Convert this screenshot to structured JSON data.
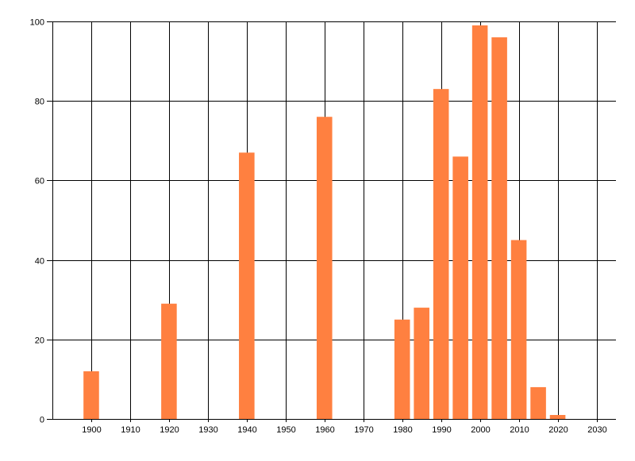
{
  "chart_data": {
    "type": "bar",
    "title": "",
    "xlabel": "",
    "ylabel": "",
    "x": [
      1900,
      1920,
      1940,
      1960,
      1980,
      1985,
      1990,
      1995,
      2000,
      2005,
      2010,
      2015,
      2020
    ],
    "values": [
      12,
      29,
      67,
      76,
      25,
      28,
      83,
      66,
      99,
      96,
      45,
      8,
      1
    ],
    "bar_width_years": 4,
    "xlim": [
      1890,
      2035
    ],
    "ylim": [
      0,
      100
    ],
    "xticks": [
      1900,
      1910,
      1920,
      1930,
      1940,
      1950,
      1960,
      1970,
      1980,
      1990,
      2000,
      2010,
      2020,
      2030
    ],
    "yticks": [
      0,
      20,
      40,
      60,
      80,
      100
    ],
    "grid": true,
    "bar_color": "#FF8040",
    "grid_color": "#000000"
  }
}
